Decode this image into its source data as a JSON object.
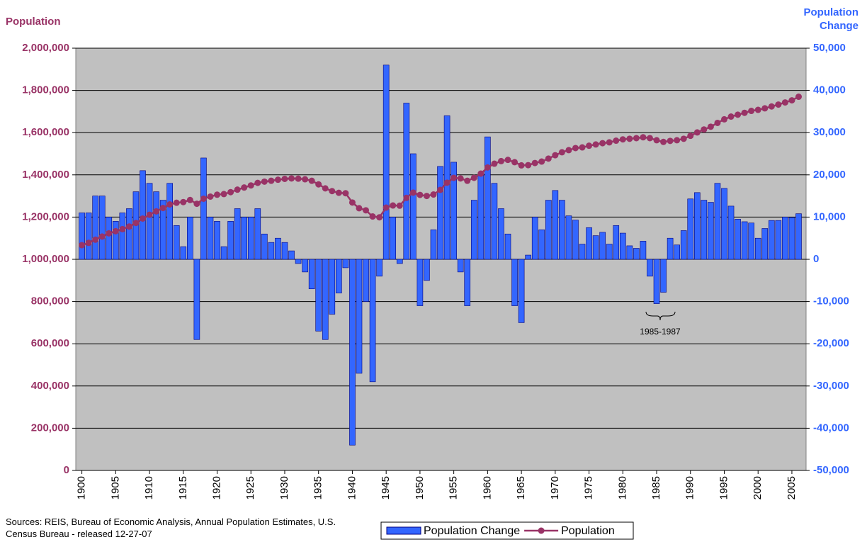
{
  "chart_data": {
    "type": "bar-line",
    "y_label": "Population",
    "y2_label": "Population Change",
    "source": "Sources: REIS, Bureau of Economic Analysis, Annual Population Estimates, U.S. Census Bureau - released 12-27-07",
    "annotation": "1985-1987",
    "x": [
      1900,
      1901,
      1902,
      1903,
      1904,
      1905,
      1906,
      1907,
      1908,
      1909,
      1910,
      1911,
      1912,
      1913,
      1914,
      1915,
      1916,
      1917,
      1918,
      1919,
      1920,
      1921,
      1922,
      1923,
      1924,
      1925,
      1926,
      1927,
      1928,
      1929,
      1930,
      1931,
      1932,
      1933,
      1934,
      1935,
      1936,
      1937,
      1938,
      1939,
      1940,
      1941,
      1942,
      1943,
      1944,
      1945,
      1946,
      1947,
      1948,
      1949,
      1950,
      1951,
      1952,
      1953,
      1954,
      1955,
      1956,
      1957,
      1958,
      1959,
      1960,
      1961,
      1962,
      1963,
      1964,
      1965,
      1966,
      1967,
      1968,
      1969,
      1970,
      1971,
      1972,
      1973,
      1974,
      1975,
      1976,
      1977,
      1978,
      1979,
      1980,
      1981,
      1982,
      1983,
      1984,
      1985,
      1986,
      1987,
      1988,
      1989,
      1990,
      1991,
      1992,
      1993,
      1994,
      1995,
      1996,
      1997,
      1998,
      1999,
      2000,
      2001,
      2002,
      2003,
      2004,
      2005,
      2006
    ],
    "xlim": [
      1899.1,
      2007.1
    ],
    "xticks": [
      1900,
      1905,
      1910,
      1915,
      1920,
      1925,
      1930,
      1935,
      1940,
      1945,
      1950,
      1955,
      1960,
      1965,
      1970,
      1975,
      1980,
      1985,
      1990,
      1995,
      2000,
      2005
    ],
    "ylim": [
      0,
      2000000
    ],
    "yticks": [
      {
        "value": 0,
        "label": "0"
      },
      {
        "value": 200000,
        "label": "200,000"
      },
      {
        "value": 400000,
        "label": "400,000"
      },
      {
        "value": 600000,
        "label": "600,000"
      },
      {
        "value": 800000,
        "label": "800,000"
      },
      {
        "value": 1000000,
        "label": "1,000,000"
      },
      {
        "value": 1200000,
        "label": "1,200,000"
      },
      {
        "value": 1400000,
        "label": "1,400,000"
      },
      {
        "value": 1600000,
        "label": "1,600,000"
      },
      {
        "value": 1800000,
        "label": "1,800,000"
      },
      {
        "value": 2000000,
        "label": "2,000,000"
      }
    ],
    "y2lim": [
      -50000,
      50000
    ],
    "y2ticks": [
      {
        "value": -50000,
        "label": "-50,000"
      },
      {
        "value": -40000,
        "label": "-40,000"
      },
      {
        "value": -30000,
        "label": "-30,000"
      },
      {
        "value": -20000,
        "label": "-20,000"
      },
      {
        "value": -10000,
        "label": "-10,000"
      },
      0,
      {
        "value": 10000,
        "label": "10,000"
      },
      {
        "value": 20000,
        "label": "20,000"
      },
      {
        "value": 30000,
        "label": "30,000"
      },
      {
        "value": 40000,
        "label": "40,000"
      },
      {
        "value": 50000,
        "label": "50,000"
      }
    ],
    "grid": true,
    "legend": "bottom",
    "series": [
      {
        "name": "Population Change",
        "type": "bar",
        "axis": "y2",
        "color": "#3366ff",
        "values": [
          11000,
          11000,
          15000,
          15000,
          10000,
          9000,
          11000,
          12000,
          16000,
          21000,
          18000,
          16000,
          14000,
          18000,
          8000,
          3000,
          10000,
          -19000,
          24000,
          10000,
          9000,
          3000,
          9000,
          12000,
          10000,
          10000,
          12000,
          6000,
          4000,
          5000,
          4000,
          2000,
          -1000,
          -3000,
          -7000,
          -17000,
          -19000,
          -13000,
          -8000,
          -2000,
          -44000,
          -27000,
          -10000,
          -29000,
          -4000,
          46000,
          10000,
          -1000,
          37000,
          25000,
          -11000,
          -5000,
          7000,
          22000,
          34000,
          23000,
          -3000,
          -11000,
          14000,
          20000,
          29000,
          18000,
          12000,
          6000,
          -11000,
          -15000,
          1000,
          10000,
          7000,
          14000,
          16300,
          14000,
          10300,
          9300,
          3600,
          7500,
          5600,
          6400,
          3600,
          8000,
          6200,
          3200,
          2600,
          4300,
          -4000,
          -10500,
          -7800,
          5000,
          3400,
          6800,
          14300,
          15800,
          14000,
          13500,
          18000,
          16800,
          12600,
          9500,
          8900,
          8600,
          5000,
          7300,
          9200,
          9200,
          10000,
          9900,
          10800
        ]
      },
      {
        "name": "Population",
        "type": "line",
        "axis": "y",
        "color": "#993366",
        "values": [
          1067000,
          1078000,
          1093000,
          1108000,
          1123000,
          1133000,
          1143000,
          1155000,
          1172000,
          1193000,
          1211000,
          1227000,
          1243000,
          1260000,
          1268000,
          1271000,
          1281000,
          1263000,
          1287000,
          1297000,
          1306000,
          1309000,
          1318000,
          1330000,
          1340000,
          1350000,
          1362000,
          1368000,
          1372000,
          1377000,
          1381000,
          1383000,
          1382000,
          1379000,
          1372000,
          1355000,
          1336000,
          1323000,
          1315000,
          1313000,
          1269000,
          1242000,
          1232000,
          1203000,
          1199000,
          1245000,
          1255000,
          1254000,
          1291000,
          1316000,
          1305000,
          1300000,
          1307000,
          1329000,
          1363000,
          1386000,
          1383000,
          1372000,
          1386000,
          1406000,
          1435000,
          1453000,
          1465000,
          1471000,
          1460000,
          1445000,
          1446000,
          1456000,
          1463000,
          1477000,
          1493000,
          1507000,
          1517000,
          1527000,
          1530000,
          1538000,
          1544000,
          1550000,
          1554000,
          1562000,
          1568000,
          1571000,
          1574000,
          1578000,
          1574000,
          1564000,
          1556000,
          1561000,
          1564000,
          1571000,
          1585000,
          1601000,
          1615000,
          1628000,
          1646000,
          1663000,
          1676000,
          1685000,
          1694000,
          1703000,
          1708000,
          1715000,
          1724000,
          1733000,
          1743000,
          1753000,
          1770000
        ]
      }
    ]
  }
}
